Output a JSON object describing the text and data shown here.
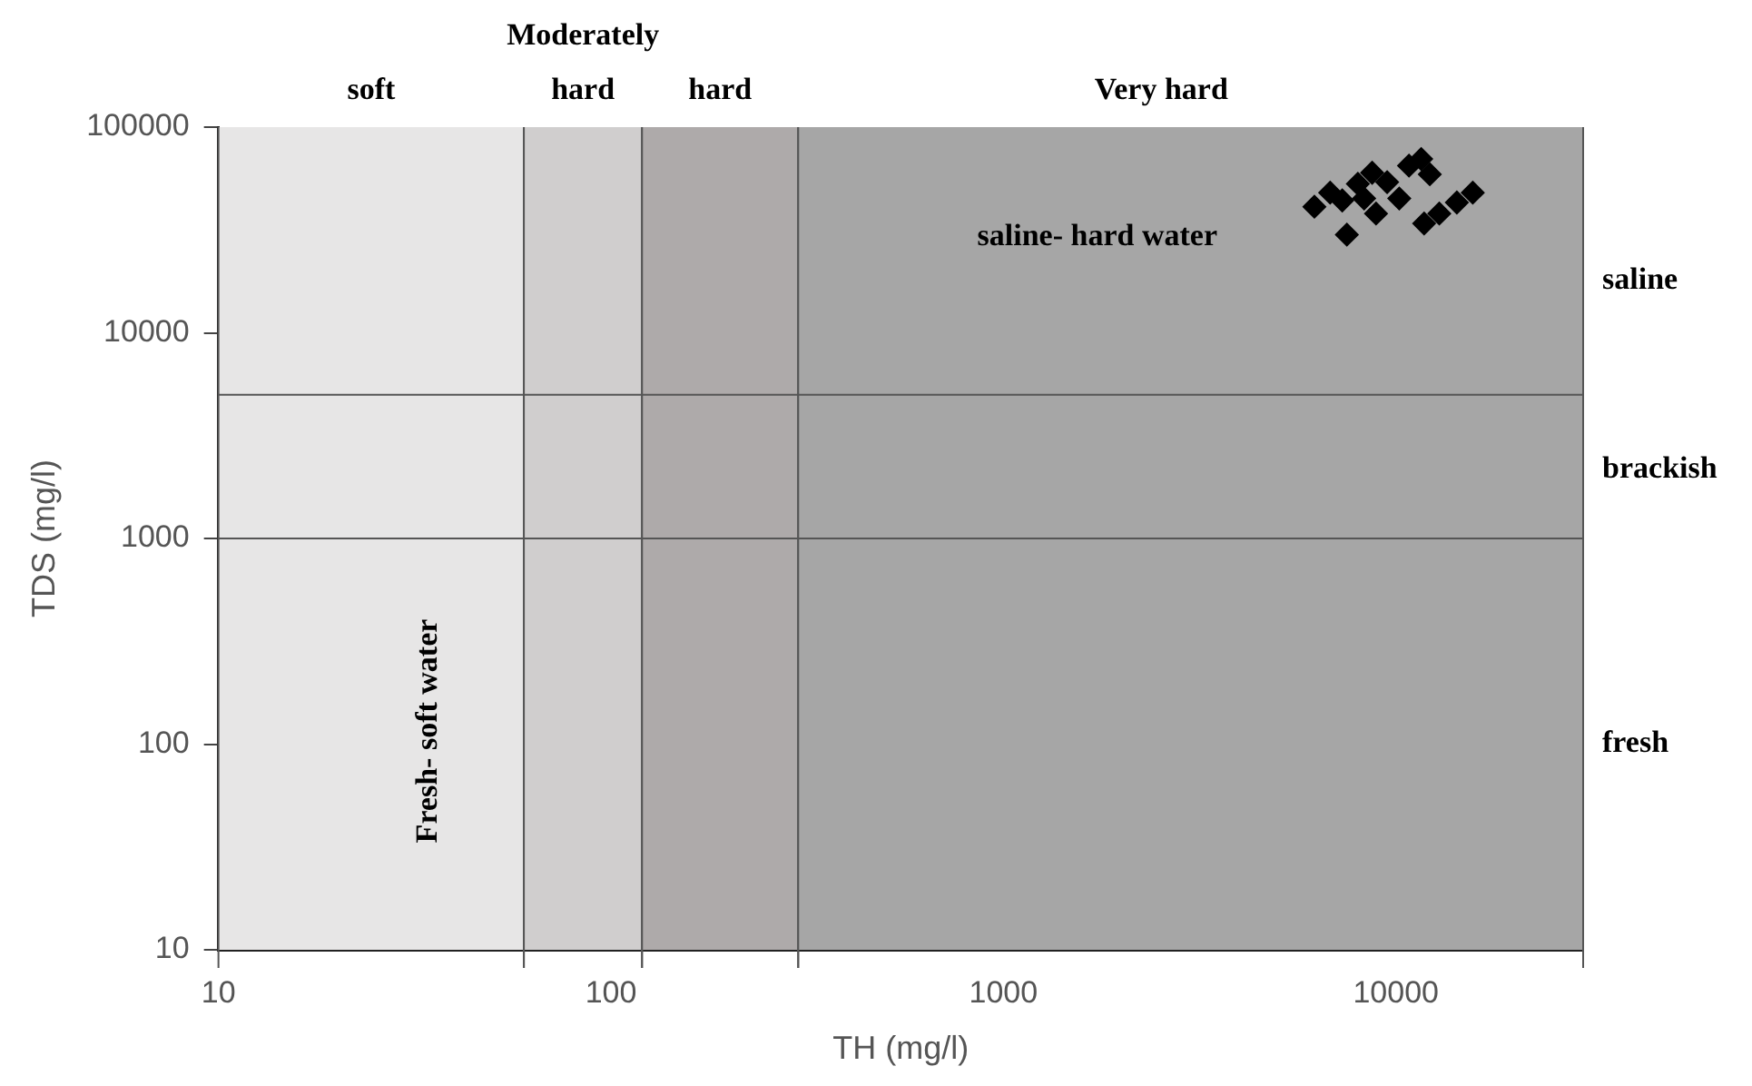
{
  "chart_data": {
    "type": "scatter",
    "xlabel": "TH (mg/l)",
    "ylabel": "TDS (mg/l)",
    "log": "xy",
    "xlim": [
      10,
      30000
    ],
    "ylim": [
      10,
      100000
    ],
    "xticks": [
      10,
      100,
      1000,
      10000
    ],
    "yticks": [
      10,
      100,
      1000,
      10000,
      100000
    ],
    "grid": false,
    "legend": false,
    "marker": "diamond",
    "series": [
      {
        "color": "#000000",
        "x": [
          6200,
          6800,
          7300,
          7500,
          8000,
          8300,
          8700,
          8900,
          9500,
          10200,
          10800,
          11600,
          12200,
          11800,
          12900,
          14300,
          15700
        ],
        "values": [
          41000,
          48000,
          44000,
          30000,
          53000,
          45000,
          60000,
          38000,
          54000,
          45000,
          65000,
          70000,
          59000,
          34000,
          38000,
          43000,
          48000
        ]
      }
    ],
    "bands": [
      {
        "axis": "x",
        "from": 10,
        "to": 60,
        "label": "soft",
        "color": "#e7e6e6"
      },
      {
        "axis": "x",
        "from": 60,
        "to": 120,
        "label": "Moderately hard",
        "color": "#d0cece"
      },
      {
        "axis": "x",
        "from": 120,
        "to": 300,
        "label": "hard",
        "color": "#aeaaaa"
      },
      {
        "axis": "x",
        "from": 300,
        "to": 30000,
        "label": "Very hard",
        "color": "#a6a6a6"
      }
    ],
    "ref_lines": [
      {
        "axis": "y",
        "value": 1000
      },
      {
        "axis": "y",
        "value": 5000
      }
    ],
    "annotations": [
      "saline- hard water",
      "Fresh- soft water",
      "saline",
      "brackish",
      "fresh"
    ]
  }
}
